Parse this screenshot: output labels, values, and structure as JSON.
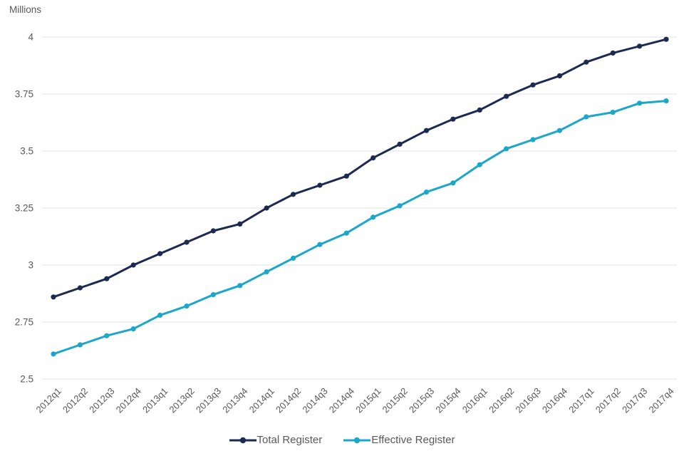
{
  "chart_data": {
    "type": "line",
    "unit_label": "Millions",
    "categories": [
      "2012q1",
      "2012q2",
      "2012q3",
      "2012q4",
      "2013q1",
      "2013q2",
      "2013q3",
      "2013q4",
      "2014q1",
      "2014q2",
      "2014q3",
      "2014q4",
      "2015q1",
      "2015q2",
      "2015q3",
      "2015q4",
      "2016q1",
      "2016q2",
      "2016q3",
      "2016q4",
      "2017q1",
      "2017q2",
      "2017q3",
      "2017q4"
    ],
    "series": [
      {
        "name": "Total Register",
        "color": "#1c2a52",
        "values": [
          2.86,
          2.9,
          2.94,
          3.0,
          3.05,
          3.1,
          3.15,
          3.18,
          3.25,
          3.31,
          3.35,
          3.39,
          3.47,
          3.53,
          3.59,
          3.64,
          3.68,
          3.74,
          3.79,
          3.83,
          3.89,
          3.93,
          3.96,
          3.99
        ]
      },
      {
        "name": "Effective Register",
        "color": "#1aa7ca",
        "values": [
          2.61,
          2.65,
          2.69,
          2.72,
          2.78,
          2.82,
          2.87,
          2.91,
          2.97,
          3.03,
          3.09,
          3.14,
          3.21,
          3.26,
          3.32,
          3.36,
          3.44,
          3.51,
          3.55,
          3.59,
          3.65,
          3.67,
          3.71,
          3.72
        ]
      }
    ],
    "ylim": [
      2.5,
      4.0
    ],
    "yticks": [
      2.5,
      2.75,
      3,
      3.25,
      3.5,
      3.75,
      4
    ],
    "ytick_labels": [
      "2.5",
      "2.75",
      "3",
      "3.25",
      "3.5",
      "3.75",
      "4"
    ],
    "xlabel": "",
    "ylabel": "Millions",
    "grid": "horizontal-only",
    "legend_position": "bottom-center",
    "colors": {
      "grid_line": "#e6e6e6",
      "tick_text": "#595959",
      "legend_text": "#595959",
      "background": "#ffffff"
    }
  }
}
